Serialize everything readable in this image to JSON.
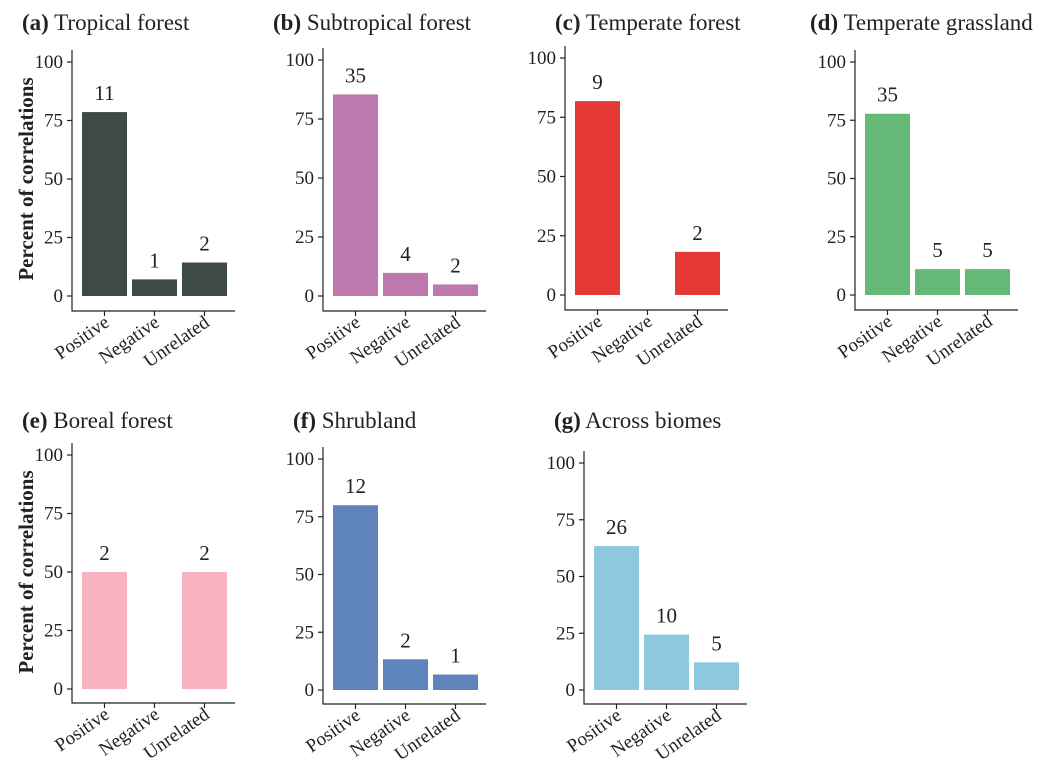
{
  "ylabel": "Percent of correlations",
  "chart_data": [
    {
      "type": "bar",
      "letter": "(a)",
      "title": "Tropical forest",
      "categories": [
        "Positive",
        "Negative",
        "Unrelated"
      ],
      "values": [
        78.6,
        7.1,
        14.3
      ],
      "counts": [
        "11",
        "1",
        "2"
      ],
      "ylim": [
        0,
        100
      ],
      "yticks": [
        "0",
        "25",
        "50",
        "75",
        "100"
      ],
      "ylabel": "Percent of correlations",
      "color": "#3e4a45"
    },
    {
      "type": "bar",
      "letter": "(b)",
      "title": "Subtropical forest",
      "categories": [
        "Positive",
        "Negative",
        "Unrelated"
      ],
      "values": [
        85.4,
        9.8,
        4.9
      ],
      "counts": [
        "35",
        "4",
        "2"
      ],
      "ylim": [
        0,
        100
      ],
      "yticks": [
        "0",
        "25",
        "50",
        "75",
        "100"
      ],
      "ylabel": "",
      "color": "#bd78ad"
    },
    {
      "type": "bar",
      "letter": "(c)",
      "title": "Temperate forest",
      "categories": [
        "Positive",
        "Negative",
        "Unrelated"
      ],
      "values": [
        81.8,
        0,
        18.2
      ],
      "counts": [
        "9",
        "",
        "2"
      ],
      "ylim": [
        0,
        100
      ],
      "yticks": [
        "0",
        "25",
        "50",
        "75",
        "100"
      ],
      "ylabel": "",
      "color": "#e53935"
    },
    {
      "type": "bar",
      "letter": "(d)",
      "title": "Temperate grassland",
      "categories": [
        "Positive",
        "Negative",
        "Unrelated"
      ],
      "values": [
        77.8,
        11.1,
        11.1
      ],
      "counts": [
        "35",
        "5",
        "5"
      ],
      "ylim": [
        0,
        100
      ],
      "yticks": [
        "0",
        "25",
        "50",
        "75",
        "100"
      ],
      "ylabel": "",
      "color": "#66b877"
    },
    {
      "type": "bar",
      "letter": "(e)",
      "title": "Boreal forest",
      "categories": [
        "Positive",
        "Negative",
        "Unrelated"
      ],
      "values": [
        50,
        0,
        50
      ],
      "counts": [
        "2",
        "",
        "2"
      ],
      "ylim": [
        0,
        100
      ],
      "yticks": [
        "0",
        "25",
        "50",
        "75",
        "100"
      ],
      "ylabel": "Percent of correlations",
      "color": "#f7b3c0"
    },
    {
      "type": "bar",
      "letter": "(f)",
      "title": "Shrubland",
      "categories": [
        "Positive",
        "Negative",
        "Unrelated"
      ],
      "values": [
        80,
        13.3,
        6.7
      ],
      "counts": [
        "12",
        "2",
        "1"
      ],
      "ylim": [
        0,
        100
      ],
      "yticks": [
        "0",
        "25",
        "50",
        "75",
        "100"
      ],
      "ylabel": "",
      "color": "#5f84bb"
    },
    {
      "type": "bar",
      "letter": "(g)",
      "title": "Across biomes",
      "categories": [
        "Positive",
        "Negative",
        "Unrelated"
      ],
      "values": [
        63.4,
        24.4,
        12.2
      ],
      "counts": [
        "26",
        "10",
        "5"
      ],
      "ylim": [
        0,
        100
      ],
      "yticks": [
        "0",
        "25",
        "50",
        "75",
        "100"
      ],
      "ylabel": "",
      "color": "#8dc8de"
    }
  ]
}
